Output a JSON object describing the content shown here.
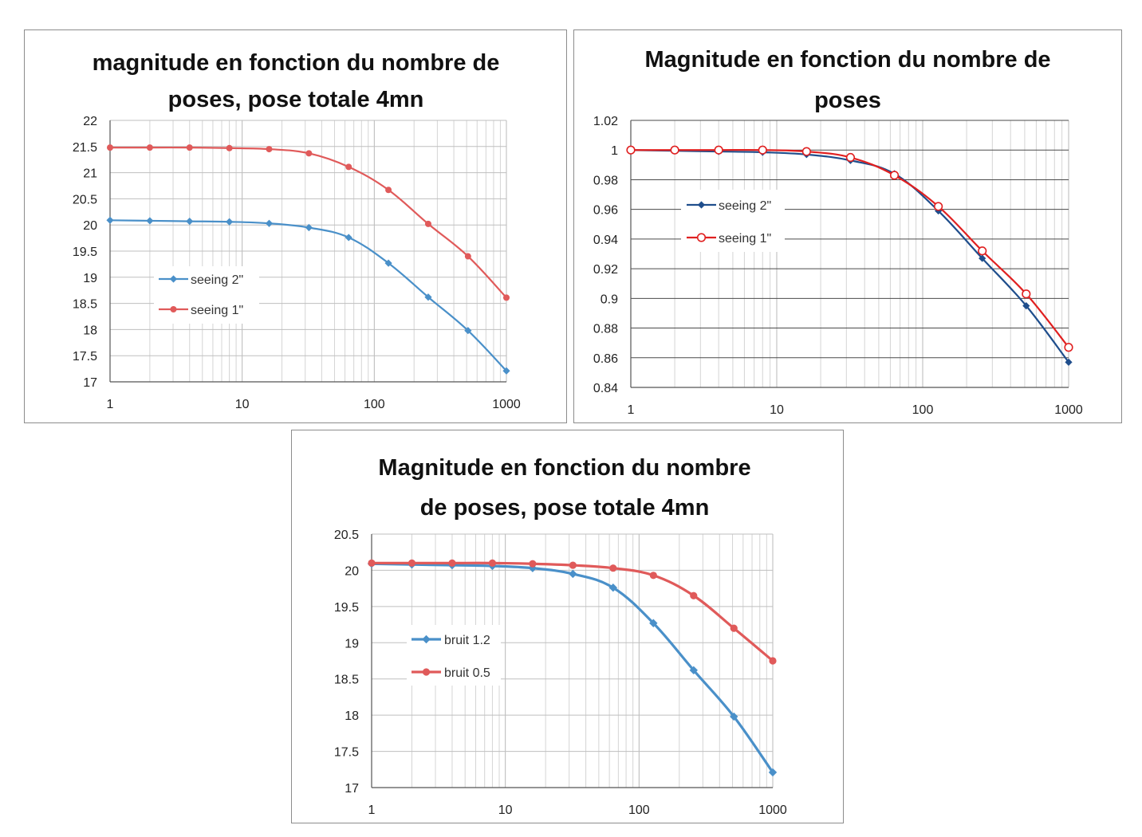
{
  "chart_data": [
    {
      "type": "line",
      "title_lines": [
        "magnitude en fonction du nombre de",
        "poses, pose totale 4mn"
      ],
      "xscale": "log",
      "xlim": [
        1,
        1000
      ],
      "ylim": [
        17,
        22
      ],
      "x_ticks": [
        "1",
        "10",
        "100",
        "1000"
      ],
      "y_ticks": [
        "17",
        "17.5",
        "18",
        "18.5",
        "19",
        "19.5",
        "20",
        "20.5",
        "21",
        "21.5",
        "22"
      ],
      "grid": true,
      "legend": "middle-left",
      "x": [
        1,
        2,
        4,
        8,
        16,
        32,
        64,
        128,
        256,
        512,
        1000
      ],
      "series": [
        {
          "name": "seeing 2\"",
          "color": "#4a90c9",
          "marker": "diamond",
          "values": [
            20.09,
            20.08,
            20.07,
            20.06,
            20.03,
            19.95,
            19.76,
            19.27,
            18.62,
            17.98,
            17.21
          ]
        },
        {
          "name": "seeing 1\"",
          "color": "#e05a5a",
          "marker": "circle",
          "values": [
            21.48,
            21.48,
            21.48,
            21.47,
            21.45,
            21.37,
            21.11,
            20.67,
            20.02,
            19.4,
            18.61
          ]
        }
      ]
    },
    {
      "type": "line",
      "title_lines": [
        "Magnitude en fonction du nombre de",
        "poses"
      ],
      "xscale": "log",
      "xlim": [
        1,
        1000
      ],
      "ylim": [
        0.84,
        1.02
      ],
      "x_ticks": [
        "1",
        "10",
        "100",
        "1000"
      ],
      "y_ticks": [
        "0.84",
        "0.86",
        "0.88",
        "0.9",
        "0.92",
        "0.94",
        "0.96",
        "0.98",
        "1",
        "1.02"
      ],
      "grid": true,
      "legend": "middle-left",
      "x": [
        1,
        2,
        4,
        8,
        16,
        32,
        64,
        128,
        256,
        512,
        1000
      ],
      "series": [
        {
          "name": "seeing 2\"",
          "color": "#1f4e8c",
          "marker": "diamond",
          "values": [
            1.0,
            0.9995,
            0.999,
            0.9985,
            0.997,
            0.993,
            0.984,
            0.959,
            0.927,
            0.895,
            0.857
          ]
        },
        {
          "name": "seeing 1\"",
          "color": "#e02020",
          "marker": "open-circle",
          "values": [
            1.0,
            1.0,
            1.0,
            1.0,
            0.999,
            0.995,
            0.983,
            0.962,
            0.932,
            0.903,
            0.867
          ]
        }
      ]
    },
    {
      "type": "line",
      "title_lines": [
        "Magnitude  en fonction du nombre",
        "de poses, pose totale 4mn"
      ],
      "xscale": "log",
      "xlim": [
        1,
        1000
      ],
      "ylim": [
        17,
        20.5
      ],
      "x_ticks": [
        "1",
        "10",
        "100",
        "1000"
      ],
      "y_ticks": [
        "17",
        "17.5",
        "18",
        "18.5",
        "19",
        "19.5",
        "20",
        "20.5"
      ],
      "grid": true,
      "legend": "middle-left",
      "x": [
        1,
        2,
        4,
        8,
        16,
        32,
        64,
        128,
        256,
        512,
        1000
      ],
      "series": [
        {
          "name": "bruit 1.2",
          "color": "#4a90c9",
          "marker": "diamond",
          "values": [
            20.09,
            20.08,
            20.07,
            20.06,
            20.03,
            19.95,
            19.76,
            19.27,
            18.62,
            17.98,
            17.21
          ]
        },
        {
          "name": "bruit 0.5",
          "color": "#e05a5a",
          "marker": "circle",
          "values": [
            20.1,
            20.1,
            20.1,
            20.1,
            20.09,
            20.07,
            20.03,
            19.93,
            19.65,
            19.2,
            18.75
          ]
        }
      ]
    }
  ]
}
